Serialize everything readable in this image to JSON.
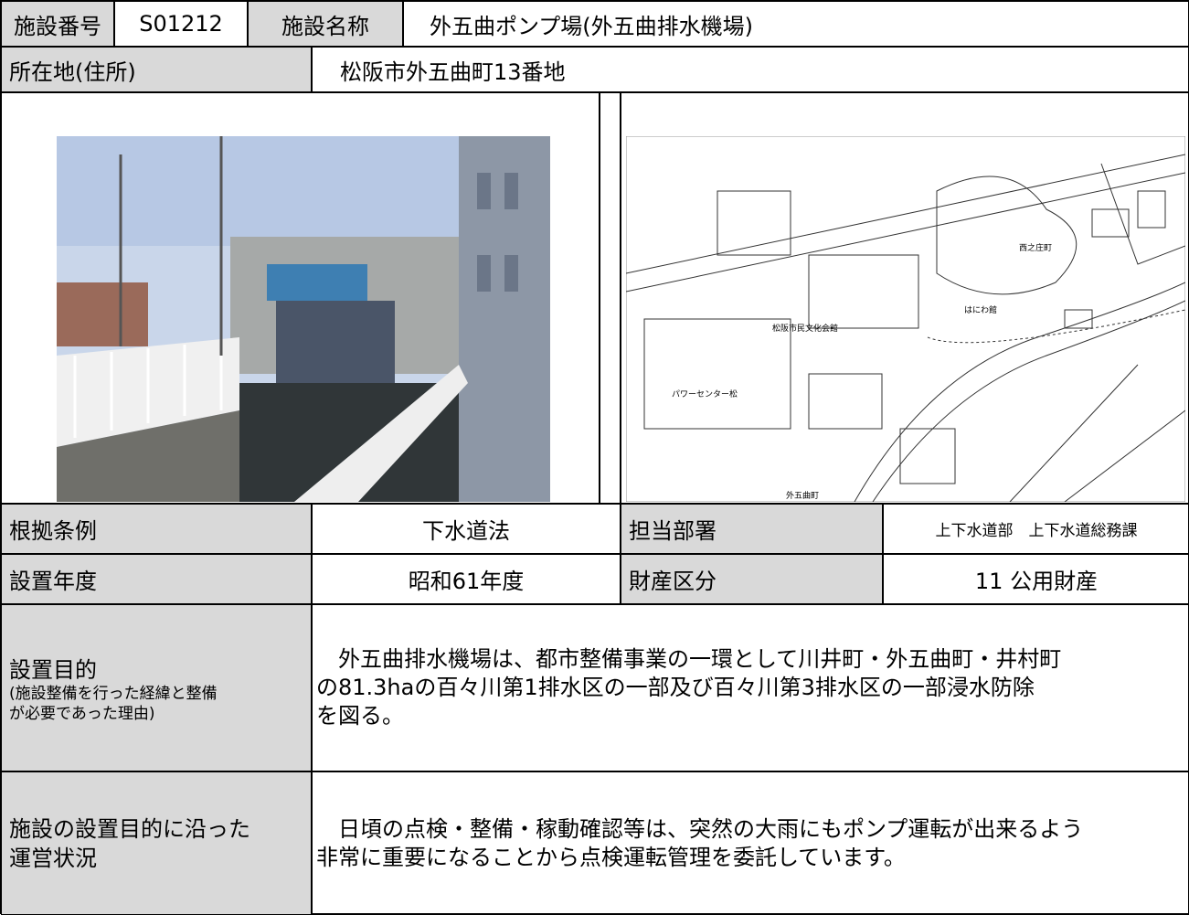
{
  "header": {
    "id_label": "施設番号",
    "id": "S01212",
    "name_label": "施設名称",
    "name": "外五曲ポンプ場(外五曲排水機場)"
  },
  "address": {
    "label": "所在地(住所)",
    "value": "松阪市外五曲町13番地"
  },
  "map": {
    "labels": [
      "パワーセンター松",
      "松阪市民文化会館",
      "はにわ館",
      "西之庄町",
      "外五曲町"
    ]
  },
  "rows": [
    {
      "label": "根拠条例",
      "value": "下水道法",
      "label2": "担当部署",
      "value2": "上下水道部　上下水道総務課"
    },
    {
      "label": "設置年度",
      "value": "昭和61年度",
      "label2": "財産区分",
      "value2": "11 公用財産"
    }
  ],
  "purpose": {
    "label": "設置目的",
    "note": [
      "(施設整備を行った経緯と整備",
      "が必要であった理由)"
    ],
    "lines": [
      "　外五曲排水機場は、都市整備事業の一環として川井町・外五曲町・井村町",
      "の81.3haの百々川第1排水区の一部及び百々川第3排水区の一部浸水防除",
      "を図る。"
    ]
  },
  "operation": {
    "label": [
      "施設の設置目的に沿った",
      "運営状況"
    ],
    "lines": [
      "　日頃の点検・整備・稼動確認等は、突然の大雨にもポンプ運転が出来るよう",
      "非常に重要になることから点検運転管理を委託しています。"
    ]
  }
}
